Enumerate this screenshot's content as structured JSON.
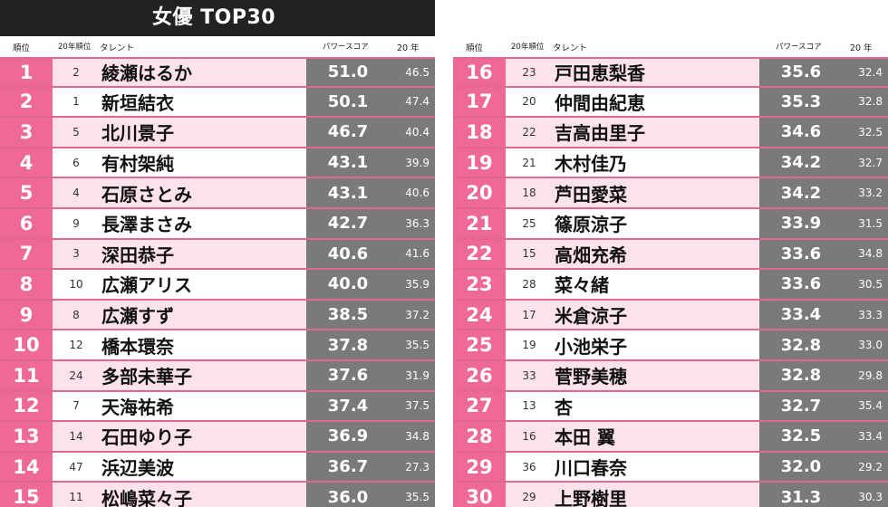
{
  "title": "女優 TOP30",
  "headers": {
    "rank": "順位",
    "prev_rank": "20年順位",
    "talent": "タレント",
    "power_score": "パワースコア",
    "year": "20 年"
  },
  "colors": {
    "rank_bg": "#ee6a94",
    "row_tint": "#fce3ea",
    "score_bg": "#7a7a7a",
    "title_bg": "#222222"
  },
  "left": [
    {
      "rank": "1",
      "prev": "2",
      "name": "綾瀬はるか",
      "score": "51.0",
      "year": "46.5"
    },
    {
      "rank": "2",
      "prev": "1",
      "name": "新垣結衣",
      "score": "50.1",
      "year": "47.4"
    },
    {
      "rank": "3",
      "prev": "5",
      "name": "北川景子",
      "score": "46.7",
      "year": "40.4"
    },
    {
      "rank": "4",
      "prev": "6",
      "name": "有村架純",
      "score": "43.1",
      "year": "39.9"
    },
    {
      "rank": "5",
      "prev": "4",
      "name": "石原さとみ",
      "score": "43.1",
      "year": "40.6"
    },
    {
      "rank": "6",
      "prev": "9",
      "name": "長澤まさみ",
      "score": "42.7",
      "year": "36.3"
    },
    {
      "rank": "7",
      "prev": "3",
      "name": "深田恭子",
      "score": "40.6",
      "year": "41.6"
    },
    {
      "rank": "8",
      "prev": "10",
      "name": "広瀬アリス",
      "score": "40.0",
      "year": "35.9"
    },
    {
      "rank": "9",
      "prev": "8",
      "name": "広瀬すず",
      "score": "38.5",
      "year": "37.2"
    },
    {
      "rank": "10",
      "prev": "12",
      "name": "橋本環奈",
      "score": "37.8",
      "year": "35.5"
    },
    {
      "rank": "11",
      "prev": "24",
      "name": "多部未華子",
      "score": "37.6",
      "year": "31.9"
    },
    {
      "rank": "12",
      "prev": "7",
      "name": "天海祐希",
      "score": "37.4",
      "year": "37.5"
    },
    {
      "rank": "13",
      "prev": "14",
      "name": "石田ゆり子",
      "score": "36.9",
      "year": "34.8"
    },
    {
      "rank": "14",
      "prev": "47",
      "name": "浜辺美波",
      "score": "36.7",
      "year": "27.3"
    },
    {
      "rank": "15",
      "prev": "11",
      "name": "松嶋菜々子",
      "score": "36.0",
      "year": "35.5"
    }
  ],
  "right": [
    {
      "rank": "16",
      "prev": "23",
      "name": "戸田恵梨香",
      "score": "35.6",
      "year": "32.4"
    },
    {
      "rank": "17",
      "prev": "20",
      "name": "仲間由紀恵",
      "score": "35.3",
      "year": "32.8"
    },
    {
      "rank": "18",
      "prev": "22",
      "name": "吉高由里子",
      "score": "34.6",
      "year": "32.5"
    },
    {
      "rank": "19",
      "prev": "21",
      "name": "木村佳乃",
      "score": "34.2",
      "year": "32.7"
    },
    {
      "rank": "20",
      "prev": "18",
      "name": "芦田愛菜",
      "score": "34.2",
      "year": "33.2"
    },
    {
      "rank": "21",
      "prev": "25",
      "name": "篠原涼子",
      "score": "33.9",
      "year": "31.5"
    },
    {
      "rank": "22",
      "prev": "15",
      "name": "高畑充希",
      "score": "33.6",
      "year": "34.8"
    },
    {
      "rank": "23",
      "prev": "28",
      "name": "菜々緒",
      "score": "33.6",
      "year": "30.5"
    },
    {
      "rank": "24",
      "prev": "17",
      "name": "米倉涼子",
      "score": "33.4",
      "year": "33.3"
    },
    {
      "rank": "25",
      "prev": "19",
      "name": "小池栄子",
      "score": "32.8",
      "year": "33.0"
    },
    {
      "rank": "26",
      "prev": "33",
      "name": "菅野美穂",
      "score": "32.8",
      "year": "29.8"
    },
    {
      "rank": "27",
      "prev": "13",
      "name": "杏",
      "score": "32.7",
      "year": "35.4"
    },
    {
      "rank": "28",
      "prev": "16",
      "name": "本田 翼",
      "score": "32.5",
      "year": "33.4"
    },
    {
      "rank": "29",
      "prev": "36",
      "name": "川口春奈",
      "score": "32.0",
      "year": "29.2"
    },
    {
      "rank": "30",
      "prev": "29",
      "name": "上野樹里",
      "score": "31.3",
      "year": "30.3"
    }
  ]
}
